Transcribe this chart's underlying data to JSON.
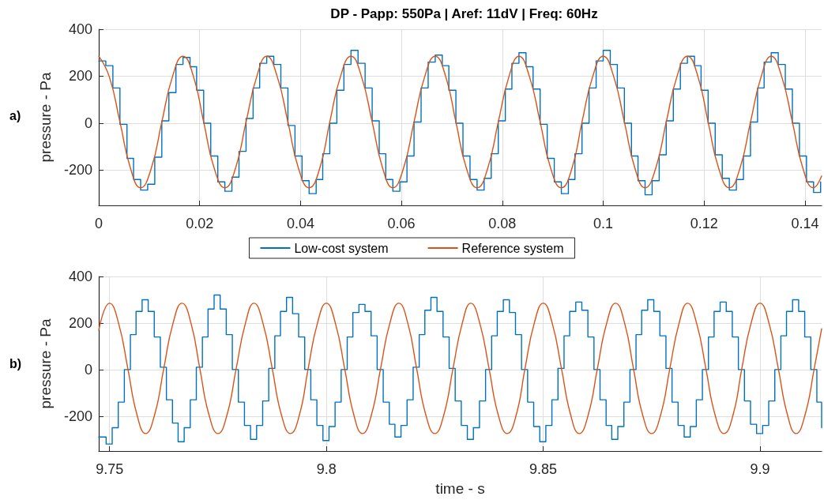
{
  "chart_data": [
    {
      "type": "line",
      "title": "DP - Papp: 550Pa | Aref: 11dV | Freq: 60Hz",
      "ylabel": "pressure - Pa",
      "annotations": [
        "a)"
      ],
      "xlim": [
        0,
        0.1433
      ],
      "xticks": [
        0,
        0.02,
        0.04,
        0.06,
        0.08,
        0.1,
        0.12,
        0.14
      ],
      "ylim": [
        -350,
        400
      ],
      "yticks": [
        -200,
        0,
        200,
        400
      ],
      "grid": true,
      "legend": "bottom",
      "marker": "none",
      "line_style": "solid",
      "series": [
        {
          "name": "Low-cost system",
          "type": "step",
          "color": "#0072bd",
          "x": [
            0,
            0.0014,
            0.0028,
            0.0042,
            0.0056,
            0.0069,
            0.0083,
            0.0097,
            0.0111,
            0.0125,
            0.0139,
            0.0153,
            0.0167,
            0.0181,
            0.0194,
            0.0208,
            0.0222,
            0.0236,
            0.025,
            0.0264,
            0.0278,
            0.0292,
            0.0306,
            0.0319,
            0.0333,
            0.0347,
            0.0361,
            0.0375,
            0.0389,
            0.0403,
            0.0417,
            0.0431,
            0.0444,
            0.0458,
            0.0472,
            0.0486,
            0.05,
            0.0514,
            0.0528,
            0.0542,
            0.0556,
            0.0569,
            0.0583,
            0.0597,
            0.0611,
            0.0625,
            0.0639,
            0.0653,
            0.0667,
            0.0681,
            0.0694,
            0.0708,
            0.0722,
            0.0736,
            0.075,
            0.0764,
            0.0778,
            0.0792,
            0.0806,
            0.0819,
            0.0833,
            0.0847,
            0.0861,
            0.0875,
            0.0889,
            0.0903,
            0.0917,
            0.0931,
            0.0944,
            0.0958,
            0.0972,
            0.0986,
            0.1,
            0.1014,
            0.1028,
            0.1042,
            0.1056,
            0.1069,
            0.1083,
            0.1097,
            0.1111,
            0.1125,
            0.1139,
            0.1153,
            0.1167,
            0.1181,
            0.1194,
            0.1208,
            0.1222,
            0.1236,
            0.125,
            0.1264,
            0.1278,
            0.1292,
            0.1306,
            0.1319,
            0.1333,
            0.1347,
            0.1361,
            0.1375,
            0.1389,
            0.1403,
            0.1417,
            0.1431
          ],
          "values": [
            265,
            245,
            150,
            -5,
            -150,
            -240,
            -285,
            -260,
            -145,
            10,
            130,
            250,
            280,
            240,
            140,
            0,
            -140,
            -250,
            -290,
            -230,
            -120,
            20,
            150,
            255,
            285,
            250,
            150,
            -10,
            -140,
            -245,
            -300,
            -240,
            -130,
            0,
            140,
            250,
            310,
            255,
            150,
            10,
            -130,
            -240,
            -290,
            -250,
            -140,
            5,
            150,
            260,
            290,
            245,
            140,
            0,
            -140,
            -240,
            -285,
            -235,
            -130,
            10,
            145,
            255,
            300,
            240,
            145,
            -5,
            -150,
            -250,
            -300,
            -240,
            -130,
            0,
            150,
            265,
            310,
            250,
            150,
            0,
            -140,
            -245,
            -305,
            -245,
            -135,
            10,
            145,
            255,
            285,
            245,
            140,
            0,
            -135,
            -235,
            -285,
            -240,
            -140,
            5,
            150,
            260,
            300,
            250,
            145,
            0,
            -140,
            -250,
            -295,
            -250
          ]
        },
        {
          "name": "Reference system",
          "type": "line",
          "color": "#d95319",
          "x": [
            0,
            0.0021,
            0.0042,
            0.0063,
            0.0083,
            0.0104,
            0.0125,
            0.0146,
            0.0167,
            0.0188,
            0.0208,
            0.0229,
            0.025,
            0.0271,
            0.0292,
            0.0313,
            0.0333,
            0.0354,
            0.0375,
            0.0396,
            0.0417,
            0.0438,
            0.0458,
            0.0479,
            0.05,
            0.0521,
            0.0542,
            0.0563,
            0.0583,
            0.0604,
            0.0625,
            0.0646,
            0.0667,
            0.0688,
            0.0708,
            0.0729,
            0.075,
            0.0771,
            0.0792,
            0.0813,
            0.0833,
            0.0854,
            0.0875,
            0.0896,
            0.0917,
            0.0938,
            0.0958,
            0.0979,
            0.1,
            0.1021,
            0.1042,
            0.1063,
            0.1083,
            0.1104,
            0.1125,
            0.1146,
            0.1167,
            0.1188,
            0.1208,
            0.1229,
            0.125,
            0.1271,
            0.1292,
            0.1313,
            0.1333,
            0.1354,
            0.1375,
            0.1396,
            0.1417,
            0.1433
          ],
          "values": [
            285,
            197,
            5,
            -193,
            -275,
            -193,
            5,
            197,
            285,
            197,
            5,
            -193,
            -275,
            -193,
            5,
            197,
            285,
            197,
            5,
            -193,
            -275,
            -193,
            5,
            197,
            285,
            197,
            5,
            -193,
            -275,
            -193,
            5,
            197,
            285,
            197,
            5,
            -193,
            -275,
            -193,
            5,
            197,
            285,
            197,
            5,
            -193,
            -275,
            -193,
            5,
            197,
            285,
            197,
            5,
            -193,
            -275,
            -193,
            5,
            197,
            285,
            197,
            5,
            -193,
            -275,
            -193,
            5,
            197,
            285,
            197,
            5,
            -193,
            -275,
            -225
          ]
        }
      ]
    },
    {
      "type": "line",
      "xlabel": "time - s",
      "ylabel": "pressure - Pa",
      "annotations": [
        "b)"
      ],
      "xlim": [
        9.7475,
        9.9142
      ],
      "xticks": [
        9.75,
        9.8,
        9.85,
        9.9
      ],
      "ylim": [
        -350,
        400
      ],
      "yticks": [
        -200,
        0,
        200,
        400
      ],
      "grid": true,
      "marker": "none",
      "line_style": "solid",
      "series": [
        {
          "type": "step",
          "color": "#0072bd",
          "x": [
            9.7475,
            9.7492,
            9.7506,
            9.752,
            9.7534,
            9.7548,
            9.7561,
            9.7575,
            9.7589,
            9.7603,
            9.7617,
            9.7631,
            9.7645,
            9.7658,
            9.7672,
            9.7686,
            9.77,
            9.7714,
            9.7727,
            9.7741,
            9.7755,
            9.7769,
            9.7783,
            9.7797,
            9.7811,
            9.7825,
            9.7839,
            9.7853,
            9.7867,
            9.7881,
            9.7894,
            9.7908,
            9.7922,
            9.7936,
            9.795,
            9.7964,
            9.7978,
            9.7992,
            9.8006,
            9.802,
            9.8034,
            9.8048,
            9.8061,
            9.8075,
            9.8089,
            9.8103,
            9.8117,
            9.8131,
            9.8145,
            9.8158,
            9.8172,
            9.8186,
            9.82,
            9.8214,
            9.8227,
            9.8241,
            9.8255,
            9.8269,
            9.8283,
            9.8297,
            9.8311,
            9.8325,
            9.8339,
            9.8353,
            9.8367,
            9.8381,
            9.8394,
            9.8408,
            9.8422,
            9.8436,
            9.845,
            9.8464,
            9.8478,
            9.8492,
            9.8506,
            9.852,
            9.8534,
            9.8548,
            9.8561,
            9.8575,
            9.8589,
            9.8603,
            9.8617,
            9.8631,
            9.8645,
            9.8658,
            9.8672,
            9.8686,
            9.87,
            9.8714,
            9.8727,
            9.8741,
            9.8755,
            9.8769,
            9.8783,
            9.8797,
            9.8811,
            9.8825,
            9.8839,
            9.8853,
            9.8867,
            9.8881,
            9.8894,
            9.8908,
            9.8922,
            9.8936,
            9.895,
            9.8964,
            9.8978,
            9.8992,
            9.9006,
            9.902,
            9.9034,
            9.9048,
            9.9061,
            9.9075,
            9.9089,
            9.9103,
            9.9117,
            9.9131,
            9.9142
          ],
          "values": [
            -290,
            -320,
            -250,
            -140,
            0,
            150,
            250,
            300,
            250,
            140,
            10,
            -130,
            -230,
            -310,
            -250,
            -130,
            10,
            140,
            260,
            320,
            260,
            150,
            0,
            -140,
            -240,
            -300,
            -240,
            -135,
            5,
            145,
            250,
            310,
            240,
            140,
            0,
            -130,
            -240,
            -305,
            -245,
            -140,
            0,
            140,
            245,
            280,
            250,
            145,
            0,
            -140,
            -235,
            -290,
            -240,
            -130,
            10,
            150,
            255,
            310,
            250,
            140,
            5,
            -135,
            -240,
            -300,
            -250,
            -135,
            0,
            145,
            250,
            300,
            245,
            150,
            0,
            -140,
            -245,
            -310,
            -240,
            -130,
            5,
            145,
            250,
            290,
            255,
            140,
            0,
            -130,
            -240,
            -300,
            -245,
            -140,
            0,
            150,
            255,
            300,
            250,
            145,
            5,
            -140,
            -240,
            -290,
            -245,
            -130,
            0,
            140,
            250,
            290,
            250,
            140,
            0,
            -135,
            -235,
            -275,
            -240,
            -135,
            0,
            145,
            250,
            300,
            250,
            140,
            0,
            -140,
            -250
          ]
        },
        {
          "type": "line",
          "color": "#d95319",
          "x": [
            9.7475,
            9.75,
            9.7521,
            9.7542,
            9.7563,
            9.7583,
            9.7604,
            9.7625,
            9.7646,
            9.7667,
            9.7688,
            9.7708,
            9.7729,
            9.775,
            9.7771,
            9.7792,
            9.7813,
            9.7833,
            9.7854,
            9.7875,
            9.7896,
            9.7917,
            9.7938,
            9.7958,
            9.7979,
            9.8,
            9.8021,
            9.8042,
            9.8063,
            9.8083,
            9.8104,
            9.8125,
            9.8146,
            9.8167,
            9.8188,
            9.8208,
            9.8229,
            9.825,
            9.8271,
            9.8292,
            9.8313,
            9.8333,
            9.8354,
            9.8375,
            9.8396,
            9.8417,
            9.8438,
            9.8458,
            9.8479,
            9.85,
            9.8521,
            9.8542,
            9.8563,
            9.8583,
            9.8604,
            9.8625,
            9.8646,
            9.8667,
            9.8688,
            9.8708,
            9.8729,
            9.875,
            9.8771,
            9.8792,
            9.8813,
            9.8833,
            9.8854,
            9.8875,
            9.8896,
            9.8917,
            9.8938,
            9.8958,
            9.8979,
            9.9,
            9.9021,
            9.9042,
            9.9063,
            9.9083,
            9.9104,
            9.9125,
            9.9142
          ],
          "values": [
            170,
            285,
            197,
            5,
            -193,
            -275,
            -193,
            5,
            197,
            285,
            197,
            5,
            -193,
            -275,
            -193,
            5,
            197,
            285,
            197,
            5,
            -193,
            -275,
            -193,
            5,
            197,
            285,
            197,
            5,
            -193,
            -275,
            -193,
            5,
            197,
            285,
            197,
            5,
            -193,
            -275,
            -193,
            5,
            197,
            285,
            197,
            5,
            -193,
            -275,
            -193,
            5,
            197,
            285,
            197,
            5,
            -193,
            -275,
            -193,
            5,
            197,
            285,
            197,
            5,
            -193,
            -275,
            -193,
            5,
            197,
            285,
            197,
            5,
            -193,
            -275,
            -193,
            5,
            197,
            285,
            197,
            5,
            -193,
            -275,
            -193,
            5,
            175
          ]
        }
      ]
    }
  ]
}
